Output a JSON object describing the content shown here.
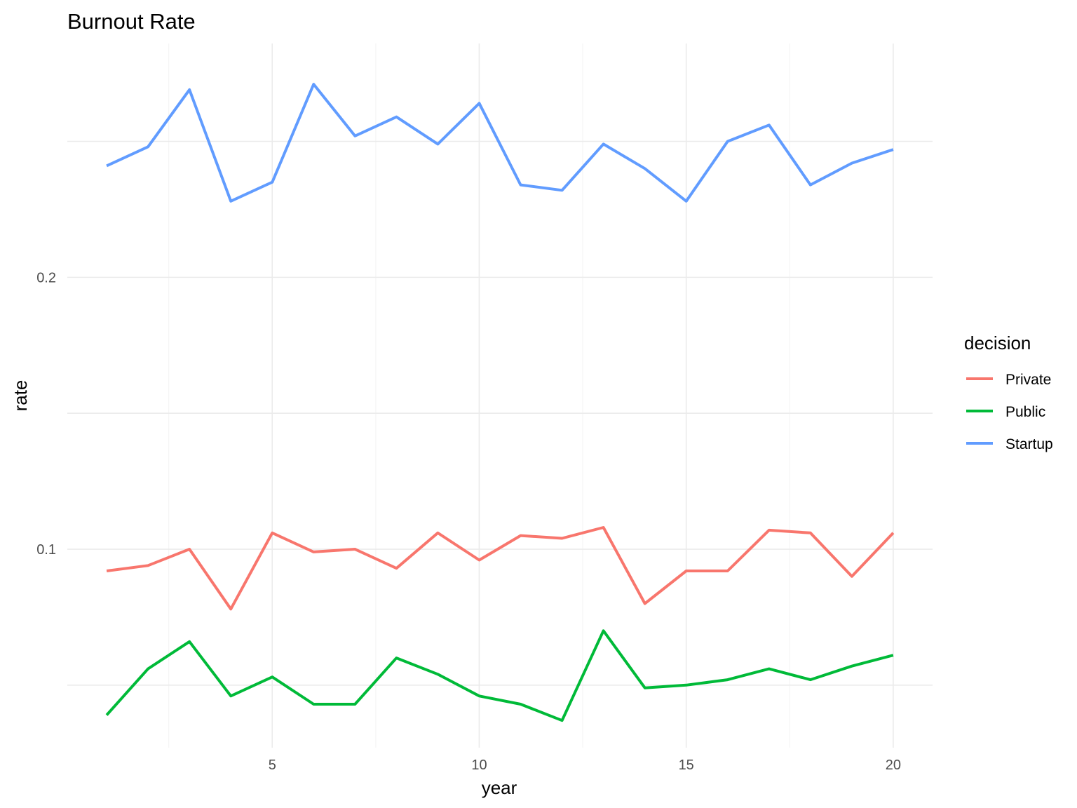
{
  "chart_data": {
    "type": "line",
    "title": "Burnout Rate",
    "xlabel": "year",
    "ylabel": "rate",
    "x": [
      1,
      2,
      3,
      4,
      5,
      6,
      7,
      8,
      9,
      10,
      11,
      12,
      13,
      14,
      15,
      16,
      17,
      18,
      19,
      20
    ],
    "xlim": [
      0.05,
      20.95
    ],
    "ylim": [
      0.027,
      0.286
    ],
    "x_ticks": [
      5,
      10,
      15,
      20
    ],
    "x_tick_labels": [
      "5",
      "10",
      "15",
      "20"
    ],
    "y_ticks": [
      0.1,
      0.2
    ],
    "y_tick_labels": [
      "0.1",
      "0.2"
    ],
    "grid": true,
    "legend": {
      "title": "decision",
      "position": "right"
    },
    "series": [
      {
        "name": "Private",
        "color": "#F8766D",
        "values": [
          0.092,
          0.094,
          0.1,
          0.078,
          0.106,
          0.099,
          0.1,
          0.093,
          0.106,
          0.096,
          0.105,
          0.104,
          0.108,
          0.08,
          0.092,
          0.092,
          0.107,
          0.106,
          0.09,
          0.106
        ]
      },
      {
        "name": "Public",
        "color": "#00BA38",
        "values": [
          0.039,
          0.056,
          0.066,
          0.046,
          0.053,
          0.043,
          0.043,
          0.06,
          0.054,
          0.046,
          0.043,
          0.037,
          0.07,
          0.049,
          0.05,
          0.052,
          0.056,
          0.052,
          0.057,
          0.061
        ]
      },
      {
        "name": "Startup",
        "color": "#619CFF",
        "values": [
          0.241,
          0.248,
          0.269,
          0.228,
          0.235,
          0.271,
          0.252,
          0.259,
          0.249,
          0.264,
          0.234,
          0.232,
          0.249,
          0.24,
          0.228,
          0.25,
          0.256,
          0.234,
          0.242,
          0.247
        ]
      }
    ]
  }
}
